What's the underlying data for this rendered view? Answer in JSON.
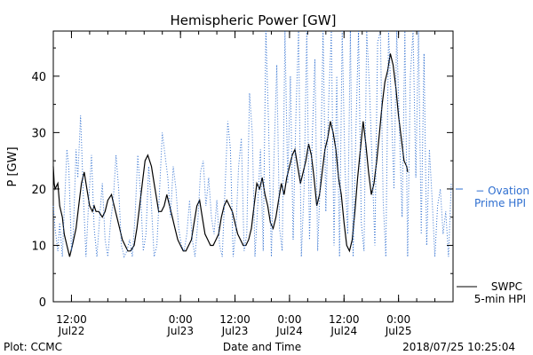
{
  "chart_data": {
    "type": "line",
    "title": "Hemispheric Power [GW]",
    "xlabel": "Date and Time",
    "ylabel": "P [GW]",
    "ylim": [
      0,
      48
    ],
    "xlim_hours": [
      -14,
      30
    ],
    "y_ticks": [
      0,
      10,
      20,
      30,
      40
    ],
    "x_ticks": [
      {
        "hour": -12,
        "time": "12:00",
        "date": "Jul22"
      },
      {
        "hour": 0,
        "time": "0:00",
        "date": "Jul23"
      },
      {
        "hour": 6,
        "time": "12:00",
        "date": "Jul23"
      },
      {
        "hour": 12,
        "time": "0:00",
        "date": "Jul24"
      },
      {
        "hour": 18,
        "time": "12:00",
        "date": "Jul24"
      },
      {
        "hour": 24,
        "time": "0:00",
        "date": "Jul25"
      }
    ],
    "grid": false,
    "legend_position": "right",
    "legend": [
      {
        "name": "SWPC",
        "name2": "5-min HPI",
        "color": "#000000",
        "style": "solid"
      },
      {
        "name": "Ovation",
        "name2": "Prime HPI",
        "color": "#2f6fd0",
        "style": "dotted"
      }
    ],
    "series": [
      {
        "name": "SWPC 5-min HPI",
        "color": "#000000",
        "style": "solid",
        "x": [
          -14.0,
          -13.9,
          -13.8,
          -13.5,
          -13.3,
          -13.0,
          -12.8,
          -12.5,
          -12.2,
          -11.9,
          -11.5,
          -11.2,
          -10.9,
          -10.6,
          -10.3,
          -10.0,
          -9.7,
          -9.5,
          -9.3,
          -9.0,
          -8.6,
          -8.3,
          -8.0,
          -7.6,
          -7.3,
          -7.0,
          -6.7,
          -6.4,
          -6.1,
          -5.8,
          -5.5,
          -5.1,
          -4.8,
          -4.5,
          -4.2,
          -3.9,
          -3.6,
          -3.2,
          -2.9,
          -2.6,
          -2.4,
          -2.1,
          -1.8,
          -1.5,
          -1.2,
          -0.9,
          -0.6,
          -0.3,
          0.0,
          0.3,
          0.6,
          0.9,
          1.2,
          1.5,
          1.8,
          2.1,
          2.4,
          2.7,
          3.0,
          3.3,
          3.6,
          3.9,
          4.2,
          4.5,
          4.8,
          5.1,
          5.4,
          5.7,
          6.0,
          6.3,
          6.6,
          6.9,
          7.2,
          7.5,
          7.8,
          8.1,
          8.4,
          8.7,
          9.0,
          9.3,
          9.6,
          9.9,
          10.2,
          10.5,
          10.8,
          11.1,
          11.4,
          11.7,
          12.0,
          12.3,
          12.6,
          12.9,
          13.2,
          13.5,
          13.8,
          14.1,
          14.4,
          14.7,
          15.0,
          15.3,
          15.6,
          15.9,
          16.2,
          16.5,
          16.8,
          17.1,
          17.4,
          17.7,
          18.0,
          18.3,
          18.6,
          18.9,
          19.2,
          19.5,
          19.8,
          20.1,
          20.4,
          20.7,
          21.0,
          21.3,
          21.6,
          21.9,
          22.2,
          22.5,
          22.8,
          23.1,
          23.4,
          23.7,
          24.0,
          24.3,
          24.6,
          24.9,
          25.0
        ],
        "y": [
          24,
          21,
          20,
          21,
          17,
          15,
          12,
          10,
          8,
          10,
          13,
          17,
          21,
          23,
          20,
          17,
          16,
          17,
          16,
          16,
          15,
          16,
          18,
          19,
          17,
          15,
          13,
          11,
          10,
          9,
          9,
          10,
          13,
          17,
          21,
          25,
          26,
          24,
          21,
          18,
          16,
          16,
          17,
          19,
          17,
          15,
          13,
          11,
          10,
          9,
          9,
          10,
          11,
          14,
          17,
          18,
          15,
          12,
          11,
          10,
          10,
          11,
          12,
          15,
          17,
          18,
          17,
          16,
          14,
          12,
          11,
          10,
          10,
          11,
          13,
          17,
          21,
          20,
          22,
          19,
          17,
          14,
          13,
          15,
          18,
          21,
          19,
          22,
          24,
          26,
          27,
          24,
          21,
          23,
          25,
          28,
          26,
          22,
          17,
          19,
          23,
          27,
          29,
          32,
          30,
          27,
          22,
          19,
          14,
          10,
          9,
          11,
          16,
          22,
          27,
          32,
          28,
          23,
          19,
          21,
          25,
          30,
          35,
          39,
          41,
          44,
          42,
          38,
          33,
          29,
          25,
          24,
          23
        ]
      },
      {
        "name": "Ovation Prime HPI",
        "color": "#2f6fd0",
        "style": "dotted",
        "x": [
          -14.0,
          -13.8,
          -13.5,
          -13.3,
          -13.0,
          -12.8,
          -12.5,
          -12.3,
          -12.0,
          -11.8,
          -11.5,
          -11.3,
          -11.0,
          -10.7,
          -10.4,
          -10.1,
          -9.8,
          -9.5,
          -9.2,
          -8.9,
          -8.6,
          -8.3,
          -8.0,
          -7.7,
          -7.4,
          -7.1,
          -6.8,
          -6.5,
          -6.2,
          -5.9,
          -5.6,
          -5.3,
          -5.0,
          -4.7,
          -4.4,
          -4.1,
          -3.8,
          -3.5,
          -3.2,
          -2.9,
          -2.6,
          -2.3,
          -2.0,
          -1.7,
          -1.4,
          -1.1,
          -0.8,
          -0.5,
          -0.2,
          0.1,
          0.4,
          0.7,
          1.0,
          1.3,
          1.6,
          1.9,
          2.2,
          2.5,
          2.8,
          3.1,
          3.4,
          3.7,
          4.0,
          4.3,
          4.6,
          4.9,
          5.2,
          5.5,
          5.8,
          6.1,
          6.4,
          6.7,
          7.0,
          7.3,
          7.6,
          7.9,
          8.2,
          8.5,
          8.8,
          9.1,
          9.4,
          9.7,
          10.0,
          10.3,
          10.6,
          10.9,
          11.2,
          11.5,
          11.8,
          12.1,
          12.4,
          12.7,
          13.0,
          13.3,
          13.6,
          13.9,
          14.2,
          14.5,
          14.8,
          15.1,
          15.4,
          15.7,
          16.0,
          16.3,
          16.6,
          16.9,
          17.2,
          17.5,
          17.8,
          18.1,
          18.4,
          18.7,
          19.0,
          19.3,
          19.6,
          19.9,
          20.2,
          20.5,
          20.8,
          21.1,
          21.4,
          21.7,
          22.0,
          22.3,
          22.6,
          22.9,
          23.2,
          23.5,
          23.8,
          24.1,
          24.4,
          24.7,
          25.0,
          25.3,
          25.6,
          25.9,
          26.2,
          26.5,
          26.8,
          27.1,
          27.4,
          27.7,
          28.0,
          28.3,
          28.6,
          28.9,
          29.2,
          29.5,
          29.8
        ],
        "y": [
          17,
          13,
          9,
          14,
          8,
          16,
          27,
          24,
          9,
          12,
          27,
          22,
          33,
          19,
          8,
          18,
          26,
          13,
          8,
          15,
          21,
          11,
          8,
          14,
          18,
          26,
          20,
          10,
          8,
          9,
          11,
          8,
          15,
          26,
          19,
          9,
          12,
          24,
          17,
          8,
          10,
          20,
          30,
          26,
          22,
          15,
          24,
          20,
          13,
          10,
          9,
          12,
          18,
          11,
          8,
          14,
          23,
          25,
          17,
          22,
          15,
          12,
          18,
          10,
          8,
          20,
          32,
          27,
          8,
          13,
          24,
          29,
          9,
          12,
          37,
          30,
          8,
          17,
          27,
          9,
          48,
          31,
          8,
          26,
          42,
          13,
          9,
          48,
          21,
          40,
          11,
          33,
          48,
          8,
          20,
          48,
          11,
          29,
          43,
          9,
          22,
          48,
          16,
          35,
          48,
          10,
          40,
          8,
          48,
          24,
          12,
          48,
          8,
          30,
          48,
          14,
          9,
          48,
          38,
          24,
          10,
          46,
          48,
          18,
          8,
          48,
          35,
          20,
          48,
          30,
          15,
          48,
          8,
          40,
          48,
          22,
          48,
          12,
          44,
          10,
          27,
          18,
          8,
          17,
          20,
          12,
          16,
          8,
          21
        ]
      }
    ],
    "footer_left": "Plot: CCMC",
    "footer_right": "2018/07/25 10:25:04"
  }
}
